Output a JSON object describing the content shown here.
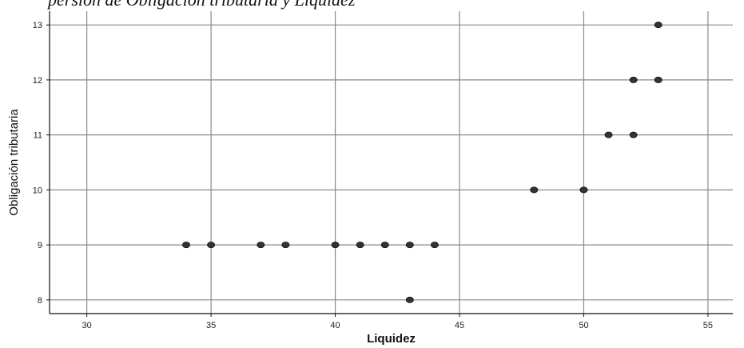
{
  "caption_fragment": "persión de Obligación tributaria y Liquidez",
  "chart_data": {
    "type": "scatter",
    "title": "",
    "xlabel": "Liquidez",
    "ylabel": "Obligación tributaria",
    "xlim": [
      28.5,
      56
    ],
    "ylim": [
      7.75,
      13.25
    ],
    "xticks": [
      30,
      35,
      40,
      45,
      50,
      55
    ],
    "yticks": [
      8,
      9,
      10,
      11,
      12,
      13
    ],
    "xtick_labels": [
      "30",
      "35",
      "40",
      "45",
      "50",
      "55"
    ],
    "ytick_labels": [
      "8",
      "9",
      "10",
      "11",
      "12",
      "13"
    ],
    "grid": true,
    "points": [
      {
        "x": 34,
        "y": 9
      },
      {
        "x": 35,
        "y": 9
      },
      {
        "x": 37,
        "y": 9
      },
      {
        "x": 38,
        "y": 9
      },
      {
        "x": 40,
        "y": 9
      },
      {
        "x": 41,
        "y": 9
      },
      {
        "x": 42,
        "y": 9
      },
      {
        "x": 43,
        "y": 9
      },
      {
        "x": 44,
        "y": 9
      },
      {
        "x": 43,
        "y": 8
      },
      {
        "x": 48,
        "y": 10
      },
      {
        "x": 50,
        "y": 10
      },
      {
        "x": 51,
        "y": 11
      },
      {
        "x": 52,
        "y": 11
      },
      {
        "x": 52,
        "y": 12
      },
      {
        "x": 53,
        "y": 12
      },
      {
        "x": 53,
        "y": 13
      }
    ],
    "colors": {
      "marker": "#333333",
      "grid": "#8a8a8a",
      "axis": "#111111"
    }
  }
}
